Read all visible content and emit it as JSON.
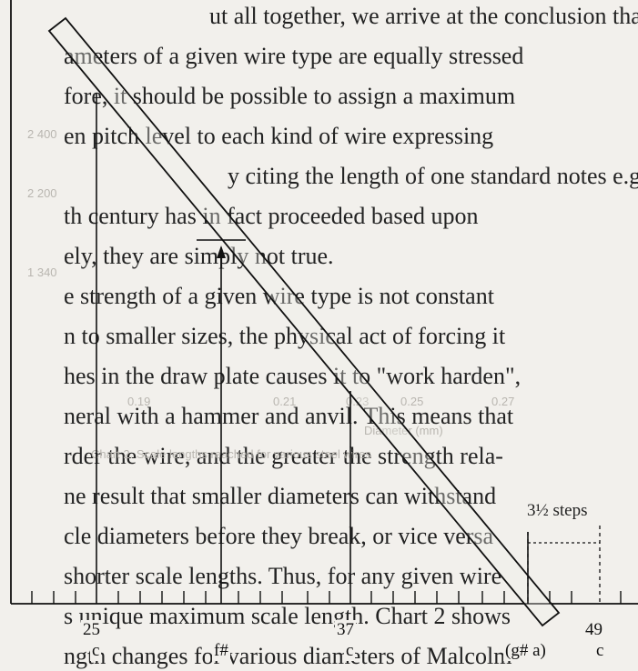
{
  "background_text": [
    "ut all together, we arrive at the conclusion that if",
    "ameters of a given wire type are equally stressed",
    "fore, it should be possible to assign a maximum",
    "en pitch level to each kind of wire expressing",
    "y citing the length of one standard notes e.g.",
    "th century has in fact proceeded based upon",
    "ely, they are simply not true.",
    "e strength of a given wire type is not constant",
    "n to smaller sizes, the physical act of forcing it",
    "hes in the draw plate causes it to \"work harden\",",
    "neral with a hammer and anvil. This means that",
    "rder the wire, and the greater the strength rela-",
    "ne result that smaller diameters can withstand",
    "cle diameters before they break, or vice versa",
    "shorter scale lengths. Thus, for any given wire",
    "s unique maximum scale length. Chart 2 shows",
    "ngth changes for various diameters of Malcolm"
  ],
  "ghost_chart_text": [
    "2 400",
    "2 200",
    "1 340",
    "0.19",
    "0.21",
    "0.23",
    "0.25",
    "0.27",
    "Diameter (mm)",
    "Chart 2. Scale lengths reached for various steel wires"
  ],
  "diagram": {
    "note_numbers": [
      "25",
      "37",
      "49"
    ],
    "note_names": [
      "c",
      "f#",
      "c",
      "(g# a)",
      "c"
    ],
    "annotation": "3½ steps",
    "accent_color": "#111111"
  }
}
